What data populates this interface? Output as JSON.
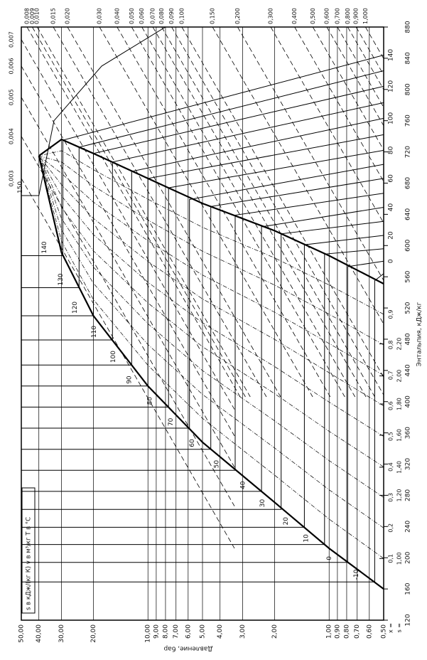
{
  "chart_data": {
    "type": "ph-diagram",
    "xlabel": "Энтальпия, кДж/кг",
    "ylabel": "Давление, бар",
    "legend_text": "s в кДж/(кг К) v в м³/кг T в °C",
    "xlim": [
      120,
      880
    ],
    "xticks": [
      120,
      160,
      200,
      240,
      280,
      320,
      360,
      400,
      440,
      480,
      520,
      560,
      600,
      640,
      680,
      720,
      760,
      800,
      840,
      880
    ],
    "ylim": [
      0.5,
      50
    ],
    "log_y": true,
    "grid": true,
    "yticks": [
      {
        "value": 50,
        "label": "50,00"
      },
      {
        "value": 40,
        "label": "40,00"
      },
      {
        "value": 30,
        "label": "30,00"
      },
      {
        "value": 20,
        "label": "20,00"
      },
      {
        "value": 10,
        "label": "10,00"
      },
      {
        "value": 9,
        "label": "9,00"
      },
      {
        "value": 8,
        "label": "8,00"
      },
      {
        "value": 7,
        "label": "7,00"
      },
      {
        "value": 6,
        "label": "6,00"
      },
      {
        "value": 5,
        "label": "5,00"
      },
      {
        "value": 4,
        "label": "4,00"
      },
      {
        "value": 3,
        "label": "3,00"
      },
      {
        "value": 2,
        "label": "2,00"
      },
      {
        "value": 1,
        "label": "1,00"
      },
      {
        "value": 0.9,
        "label": "0,90"
      },
      {
        "value": 0.8,
        "label": "0,80"
      },
      {
        "value": 0.7,
        "label": "0,70"
      },
      {
        "value": 0.6,
        "label": "0,60"
      },
      {
        "value": 0.5,
        "label": "0,50"
      }
    ],
    "saturation": {
      "pressures": [
        0.5,
        1,
        2,
        5,
        10,
        20,
        30,
        40
      ],
      "h_liquid": [
        160,
        212,
        271,
        348,
        420,
        510,
        591,
        715
      ],
      "h_vapor": [
        551,
        587,
        619,
        654,
        686,
        718,
        736,
        715
      ],
      "color": "#000000"
    },
    "quality": {
      "label": "x =",
      "values": [
        0.1,
        0.2,
        0.3,
        0.4,
        0.5,
        0.6,
        0.7,
        0.8,
        0.9
      ],
      "value_labels": [
        "0,1",
        "0,2",
        "0,3",
        "0,4",
        "0,5",
        "0,6",
        "0,7",
        "0,8",
        "0,9"
      ]
    },
    "entropy": {
      "label": "s =",
      "labels": [
        "1,00",
        "1,20",
        "1,40",
        "1,60",
        "1,80",
        "2,00",
        "2,20"
      ],
      "h": [
        199,
        280,
        316,
        357,
        397,
        433,
        474
      ]
    },
    "isotherms": [
      {
        "t": -10,
        "h": [
          169,
          169,
          555,
          564
        ],
        "p": [
          50,
          0.56,
          0.56,
          0.5
        ]
      },
      {
        "t": 0,
        "h": [
          194,
          194,
          573,
          580
        ],
        "p": [
          50,
          0.79,
          0.79,
          0.5
        ]
      },
      {
        "t": 10,
        "h": [
          217,
          217,
          589,
          596
        ],
        "p": [
          50,
          1.06,
          1.06,
          0.5
        ]
      },
      {
        "t": 20,
        "h": [
          239,
          239,
          601,
          613
        ],
        "p": [
          50,
          1.37,
          1.37,
          0.5
        ]
      },
      {
        "t": 30,
        "h": [
          262,
          262,
          615,
          631
        ],
        "p": [
          50,
          1.84,
          1.84,
          0.5
        ]
      },
      {
        "t": 40,
        "h": [
          285,
          285,
          624,
          649
        ],
        "p": [
          50,
          2.36,
          2.36,
          0.5
        ]
      },
      {
        "t": 50,
        "h": [
          312,
          312,
          639,
          667
        ],
        "p": [
          50,
          3.3,
          3.3,
          0.5
        ]
      },
      {
        "t": 60,
        "h": [
          339,
          339,
          650,
          686
        ],
        "p": [
          50,
          4.5,
          4.5,
          0.5
        ]
      },
      {
        "t": 70,
        "h": [
          366,
          366,
          659,
          704
        ],
        "p": [
          50,
          5.9,
          5.9,
          0.5
        ]
      },
      {
        "t": 80,
        "h": [
          393,
          393,
          674,
          722
        ],
        "p": [
          50,
          7.7,
          7.7,
          0.5
        ]
      },
      {
        "t": 90,
        "h": [
          420,
          420,
          686,
          742
        ],
        "p": [
          50,
          10,
          10,
          0.5
        ]
      },
      {
        "t": 100,
        "h": [
          447,
          447,
          695,
          763
        ],
        "p": [
          50,
          12.3,
          12.3,
          0.5
        ]
      },
      {
        "t": 110,
        "h": [
          479,
          479,
          707,
          783
        ],
        "p": [
          50,
          15.7,
          15.7,
          0.5
        ]
      },
      {
        "t": 120,
        "h": [
          510,
          510,
          718,
          804
        ],
        "p": [
          50,
          20,
          20,
          0.5
        ]
      },
      {
        "t": 130,
        "h": [
          546,
          546,
          726,
          824
        ],
        "p": [
          50,
          24,
          24,
          0.5
        ]
      },
      {
        "t": 140,
        "h": [
          587,
          587,
          735,
          844
        ],
        "p": [
          50,
          29.5,
          29.5,
          0.5
        ]
      },
      {
        "t": 150,
        "h": [
          664,
          664,
          760,
          830,
          880
        ],
        "p": [
          50,
          40,
          33,
          18,
          8
        ]
      }
    ],
    "right_temperature_ticks": [
      0,
      20,
      40,
      60,
      80,
      100,
      120,
      140
    ],
    "isochors": {
      "labels": [
        "0,003",
        "0,004",
        "0,005",
        "0,006",
        "0,007",
        "0,008",
        "0,009",
        "0,010",
        "0,015",
        "0,020",
        "0,030",
        "0,040",
        "0,050",
        "0,060",
        "0,070",
        "0,080",
        "0,090",
        "0,100",
        "0,150",
        "0,200",
        "0,300",
        "0,400",
        "0,500",
        "0,600",
        "0,700",
        "0,800",
        "0,900",
        "1,000"
      ],
      "h": [
        686,
        740,
        790,
        830,
        864,
        880,
        880,
        880,
        880,
        880,
        880,
        880,
        880,
        880,
        880,
        880,
        880,
        880,
        880,
        880,
        880,
        880,
        880,
        880,
        880,
        880,
        880,
        880
      ],
      "p": [
        50,
        50,
        50,
        50,
        50,
        46.5,
        43.5,
        40.9,
        33.3,
        27.8,
        18.5,
        14.8,
        12.3,
        10.8,
        9.4,
        8.4,
        7.4,
        6.5,
        4.4,
        3.2,
        2.1,
        1.55,
        1.23,
        1.03,
        0.9,
        0.79,
        0.71,
        0.63
      ]
    }
  }
}
